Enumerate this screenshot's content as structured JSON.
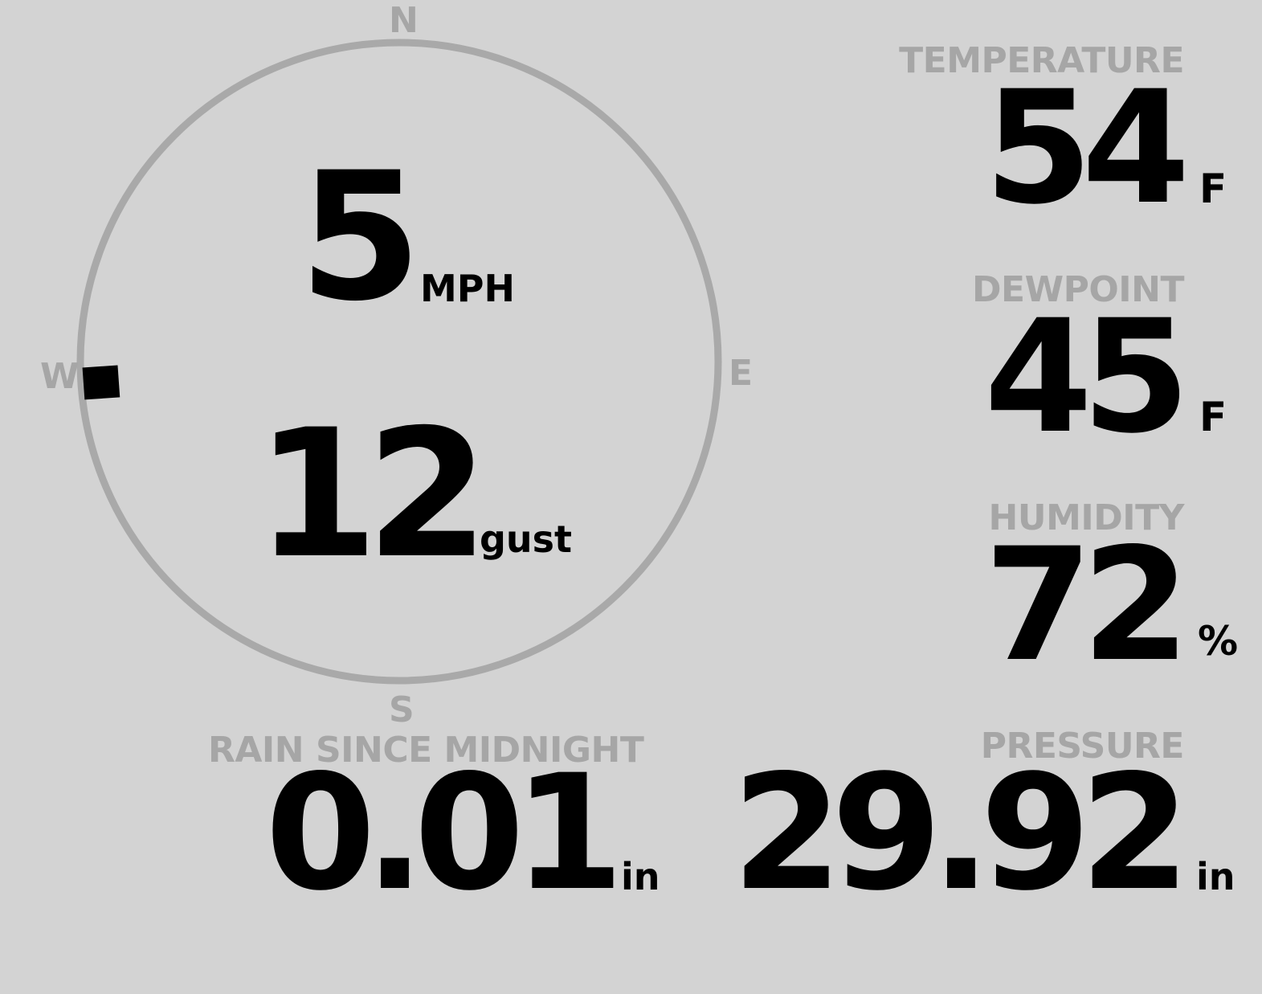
{
  "compass": {
    "labels": {
      "n": "N",
      "e": "E",
      "s": "S",
      "w": "W"
    },
    "wind_direction_deg": 266,
    "ring_color": "#a9a9a9"
  },
  "wind": {
    "speed": "5",
    "speed_unit": "MPH",
    "gust": "12",
    "gust_unit": "gust"
  },
  "rain": {
    "label": "RAIN SINCE MIDNIGHT",
    "value": "0.01",
    "unit": "in"
  },
  "temperature": {
    "label": "TEMPERATURE",
    "value": "54",
    "unit": "F"
  },
  "dewpoint": {
    "label": "DEWPOINT",
    "value": "45",
    "unit": "F"
  },
  "humidity": {
    "label": "HUMIDITY",
    "value": "72",
    "unit": "%"
  },
  "pressure": {
    "label": "PRESSURE",
    "value": "29.92",
    "unit": "in"
  },
  "colors": {
    "background": "#d3d3d3",
    "label": "#a6a6a6",
    "value": "#000000"
  }
}
